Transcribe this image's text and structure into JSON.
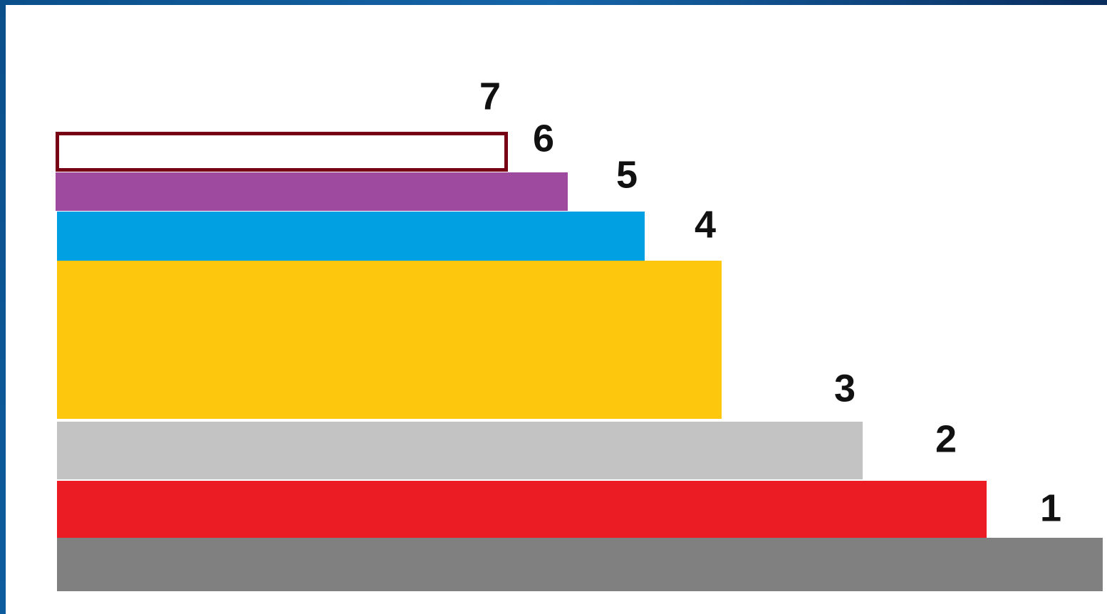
{
  "layers": [
    {
      "label": "1"
    },
    {
      "label": "2"
    },
    {
      "label": "3"
    },
    {
      "label": "4"
    },
    {
      "label": "5"
    },
    {
      "label": "6"
    },
    {
      "label": "7"
    }
  ]
}
